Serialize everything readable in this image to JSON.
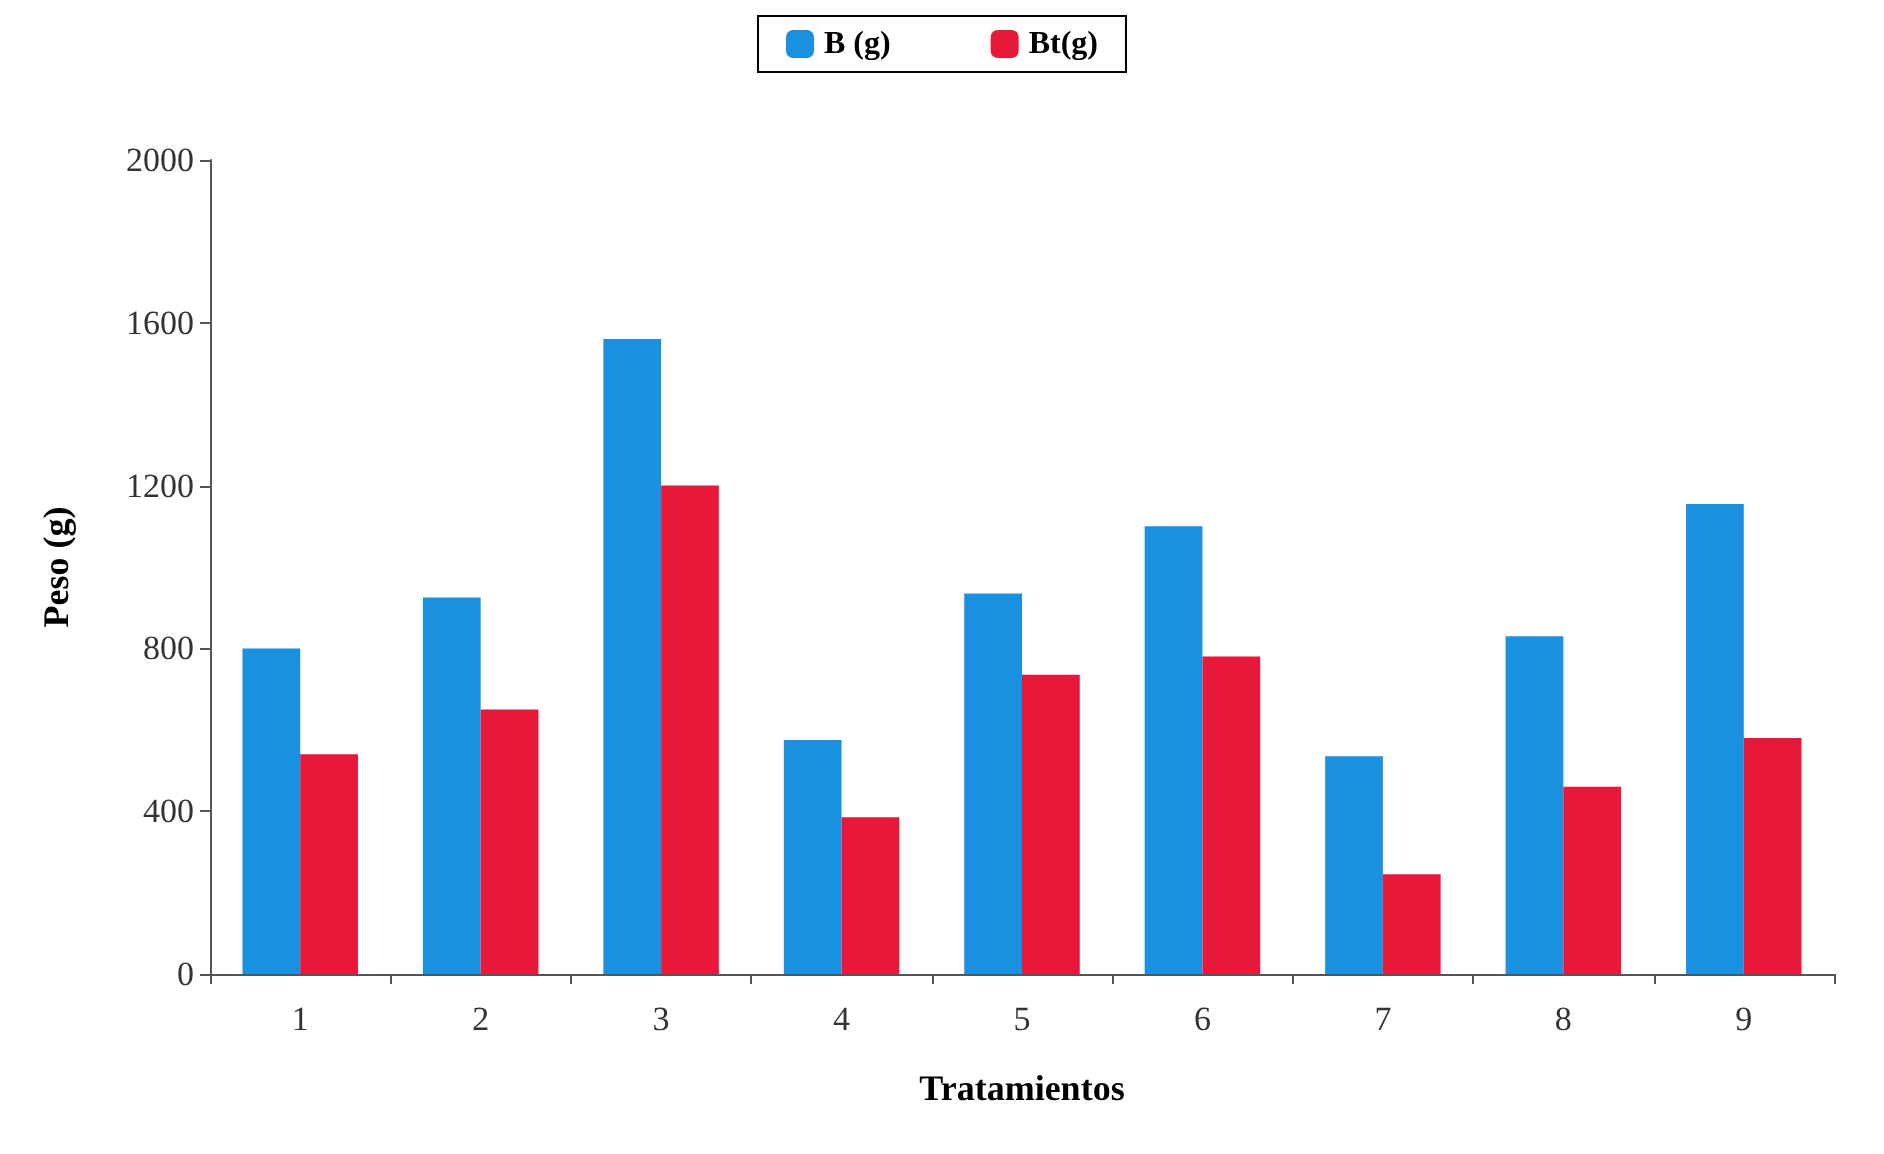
{
  "chart_data": {
    "type": "bar",
    "xlabel": "Tratamientos",
    "ylabel": "Peso (g)",
    "categories": [
      "1",
      "2",
      "3",
      "4",
      "5",
      "6",
      "7",
      "8",
      "9"
    ],
    "series": [
      {
        "name": "B (g)",
        "color": "#1a90e0",
        "values": [
          800,
          925,
          1560,
          575,
          935,
          1100,
          535,
          830,
          1155
        ]
      },
      {
        "name": "Bt(g)",
        "color": "#e8183a",
        "values": [
          540,
          650,
          1200,
          385,
          735,
          780,
          245,
          460,
          580
        ]
      }
    ],
    "ylim": [
      0,
      2000
    ],
    "yticks": [
      0,
      400,
      800,
      1200,
      1600,
      2000
    ],
    "grid": false,
    "legend": "top"
  }
}
